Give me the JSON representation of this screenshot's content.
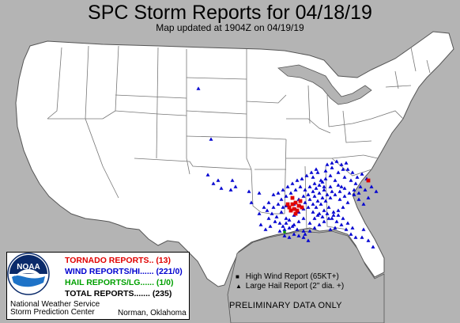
{
  "header": {
    "title": "SPC Storm Reports for 04/18/19",
    "subtitle": "Map updated at 1904Z on 04/19/19"
  },
  "legend": {
    "logo_text": "NOAA",
    "tornado": "TORNADO REPORTS.. (13)",
    "wind": "WIND REPORTS/HI...... (221/0)",
    "hail": "HAIL REPORTS/LG...... (1/0)",
    "total": "TOTAL REPORTS....... (235)",
    "footer_line1": "National Weather Service",
    "footer_line2": "Storm Prediction Center",
    "city": "Norman, Oklahoma"
  },
  "key": {
    "wind_symbol": "■",
    "wind": "High Wind Report (65KT+)",
    "hail_symbol": "▲",
    "hail": "Large Hail Report (2\" dia. +)"
  },
  "notice": "PRELIMINARY DATA ONLY",
  "colors": {
    "tornado": "#e00000",
    "wind": "#0000d0",
    "hail": "#00a000",
    "land": "#ffffff",
    "outside": "#b4b4b4",
    "border": "#555555"
  }
}
